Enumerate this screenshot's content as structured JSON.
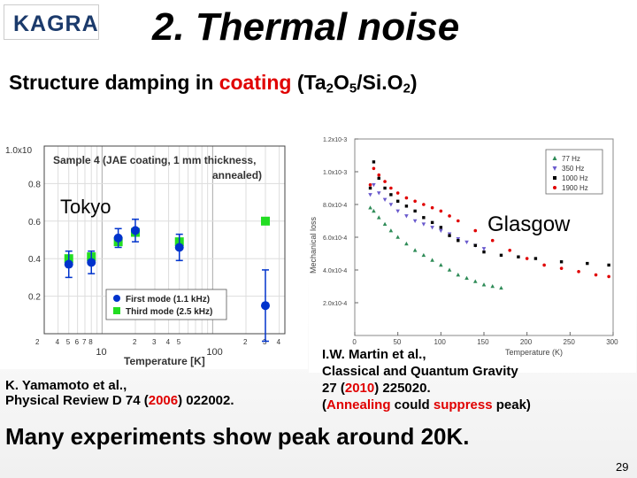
{
  "logo": {
    "text": "KAGRA"
  },
  "title": "2. Thermal noise",
  "subtitle": {
    "prefix": "Structure damping  in ",
    "highlight": "coating",
    "formula_open": "  (Ta",
    "sub1": "2",
    "o1": "O",
    "sub2": "5",
    "mid": "/Si.O",
    "sub3": "2",
    "close": ")"
  },
  "left_label": "Tokyo",
  "right_label": "Glasgow",
  "colors": {
    "accent": "#e00000",
    "blue": "#0033cc",
    "green": "#22dd22"
  },
  "chart_data": [
    {
      "type": "scatter",
      "title": "Sample 4 (JAE coating, 1 mm thickness, annealed)",
      "title_line1": "Sample 4 (JAE coating, 1 mm thickness,",
      "title_line2": "annealed)",
      "xlabel": "Temperature [K]",
      "ylabel": "",
      "x_scale": "log",
      "xlim": [
        3,
        450
      ],
      "ylim": [
        0,
        1.0
      ],
      "y_exponent_label": "1.0x10",
      "yticks": [
        "0.2",
        "0.4",
        "0.6",
        "0.8"
      ],
      "xticks_major": [
        "10",
        "100"
      ],
      "xticks_minor": [
        "2",
        "4",
        "5",
        "6",
        "7",
        "8",
        "2",
        "3",
        "4",
        "5",
        "2",
        "3",
        "4"
      ],
      "legend": [
        "First mode (1.1 kHz)",
        "Third mode (2.5 kHz)"
      ],
      "legend_position": "bottom-right",
      "series": [
        {
          "name": "First mode (1.1 kHz)",
          "color": "#0033cc",
          "marker": "circle",
          "points": [
            {
              "x": 5,
              "y": 0.37,
              "err": 0.07
            },
            {
              "x": 8,
              "y": 0.38,
              "err": 0.06
            },
            {
              "x": 14,
              "y": 0.51,
              "err": 0.05
            },
            {
              "x": 20,
              "y": 0.55,
              "err": 0.06
            },
            {
              "x": 50,
              "y": 0.46,
              "err": 0.07
            },
            {
              "x": 300,
              "y": 0.15,
              "err": 0.19
            }
          ]
        },
        {
          "name": "Third mode (2.5 kHz)",
          "color": "#22dd22",
          "marker": "square",
          "points": [
            {
              "x": 5,
              "y": 0.4
            },
            {
              "x": 8,
              "y": 0.41
            },
            {
              "x": 14,
              "y": 0.49
            },
            {
              "x": 20,
              "y": 0.54
            },
            {
              "x": 50,
              "y": 0.49
            },
            {
              "x": 300,
              "y": 0.6
            }
          ]
        }
      ]
    },
    {
      "type": "scatter",
      "xlabel": "Temperature (K)",
      "ylabel": "Mechanical loss",
      "xlim": [
        0,
        300
      ],
      "ylim": [
        0,
        0.0012
      ],
      "xticks": [
        "0",
        "50",
        "100",
        "150",
        "200",
        "250",
        "300"
      ],
      "yticks": [
        "2.0x10-4",
        "4.0x10-4",
        "6.0x10-4",
        "8.0x10-4",
        "1.0x10-3",
        "1.2x10-3"
      ],
      "ytick_values": [
        0.0002,
        0.0004,
        0.0006,
        0.0008,
        0.001,
        0.0012
      ],
      "legend_position": "top-right",
      "series": [
        {
          "name": "77 Hz",
          "color": "#2e8b57",
          "marker": "triangle",
          "points": [
            [
              18,
              0.00078
            ],
            [
              22,
              0.00076
            ],
            [
              28,
              0.00072
            ],
            [
              35,
              0.00068
            ],
            [
              42,
              0.00064
            ],
            [
              50,
              0.0006
            ],
            [
              60,
              0.00056
            ],
            [
              70,
              0.00052
            ],
            [
              80,
              0.00049
            ],
            [
              90,
              0.00046
            ],
            [
              100,
              0.00043
            ],
            [
              110,
              0.0004
            ],
            [
              120,
              0.00037
            ],
            [
              130,
              0.00035
            ],
            [
              140,
              0.00033
            ],
            [
              150,
              0.00031
            ],
            [
              160,
              0.0003
            ],
            [
              170,
              0.00029
            ]
          ]
        },
        {
          "name": "350 Hz",
          "color": "#6a5acd",
          "marker": "triangle-down",
          "points": [
            [
              18,
              0.00086
            ],
            [
              22,
              0.00092
            ],
            [
              28,
              0.00087
            ],
            [
              35,
              0.00083
            ],
            [
              42,
              0.0008
            ],
            [
              50,
              0.00076
            ],
            [
              60,
              0.00073
            ],
            [
              70,
              0.0007
            ],
            [
              80,
              0.00068
            ],
            [
              90,
              0.00066
            ],
            [
              100,
              0.00064
            ],
            [
              110,
              0.00062
            ],
            [
              120,
              0.00059
            ],
            [
              130,
              0.00057
            ],
            [
              140,
              0.00055
            ],
            [
              150,
              0.00053
            ]
          ]
        },
        {
          "name": "1000 Hz",
          "color": "#000000",
          "marker": "square",
          "points": [
            [
              18,
              0.0009
            ],
            [
              22,
              0.00106
            ],
            [
              28,
              0.00096
            ],
            [
              35,
              0.0009
            ],
            [
              42,
              0.00086
            ],
            [
              50,
              0.00082
            ],
            [
              60,
              0.00079
            ],
            [
              70,
              0.00076
            ],
            [
              80,
              0.00072
            ],
            [
              90,
              0.00069
            ],
            [
              100,
              0.00066
            ],
            [
              110,
              0.00061
            ],
            [
              120,
              0.00058
            ],
            [
              140,
              0.00055
            ],
            [
              150,
              0.00051
            ],
            [
              170,
              0.00049
            ],
            [
              190,
              0.00048
            ],
            [
              210,
              0.00047
            ],
            [
              240,
              0.00045
            ],
            [
              270,
              0.00044
            ],
            [
              295,
              0.00043
            ]
          ]
        },
        {
          "name": "1900 Hz",
          "color": "#e00000",
          "marker": "circle",
          "points": [
            [
              18,
              0.00092
            ],
            [
              22,
              0.00102
            ],
            [
              28,
              0.00098
            ],
            [
              35,
              0.00094
            ],
            [
              42,
              0.0009
            ],
            [
              50,
              0.00087
            ],
            [
              60,
              0.00084
            ],
            [
              70,
              0.00082
            ],
            [
              80,
              0.0008
            ],
            [
              90,
              0.00078
            ],
            [
              100,
              0.00076
            ],
            [
              110,
              0.00073
            ],
            [
              120,
              0.0007
            ],
            [
              140,
              0.00064
            ],
            [
              160,
              0.00058
            ],
            [
              180,
              0.00052
            ],
            [
              200,
              0.00047
            ],
            [
              220,
              0.00043
            ],
            [
              240,
              0.00041
            ],
            [
              260,
              0.00039
            ],
            [
              280,
              0.00037
            ],
            [
              295,
              0.00036
            ]
          ]
        }
      ]
    }
  ],
  "ref_left": {
    "line1": "K. Yamamoto et al.,",
    "line2_prefix": "Physical Review D 74 (",
    "year": "2006",
    "line2_suffix": ") 022002."
  },
  "ref_right": {
    "author": "I.W. Martin et al.,",
    "journal": "Classical and Quantum Gravity",
    "vol_prefix": "27 (",
    "year": "2010",
    "vol_suffix": ") 225020.",
    "note_open": "(",
    "note_w1": "Annealing",
    "note_mid": " could ",
    "note_w2": "suppress",
    "note_close": " peak)"
  },
  "conclusion": "Many experiments show peak around 20K.",
  "page_number": "29"
}
